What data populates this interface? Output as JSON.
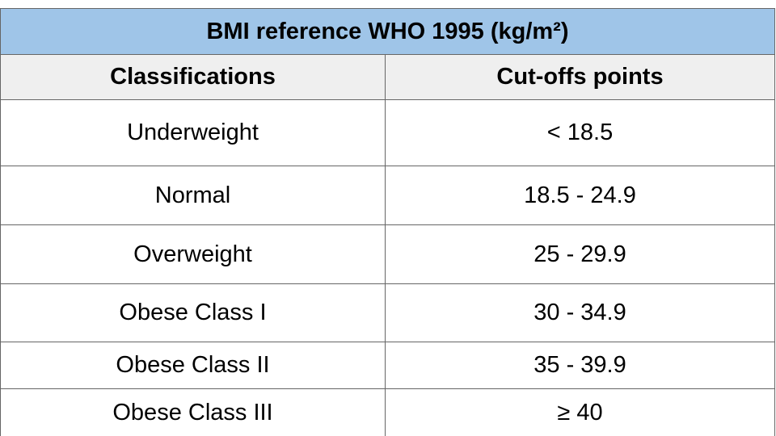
{
  "chart_data": {
    "type": "table",
    "title": "BMI reference WHO 1995 (kg/m²)",
    "columns": [
      "Classifications",
      "Cut-offs points"
    ],
    "rows": [
      [
        "Underweight",
        "< 18.5"
      ],
      [
        "Normal",
        "18.5 - 24.9"
      ],
      [
        "Overweight",
        "25 - 29.9"
      ],
      [
        "Obese Class I",
        "30 - 34.9"
      ],
      [
        "Obese Class II",
        "35 - 39.9"
      ],
      [
        "Obese Class III",
        "≥ 40"
      ]
    ]
  },
  "colors": {
    "title_background": "#9fc5e8",
    "header_background": "#efefef",
    "border": "#666666"
  }
}
